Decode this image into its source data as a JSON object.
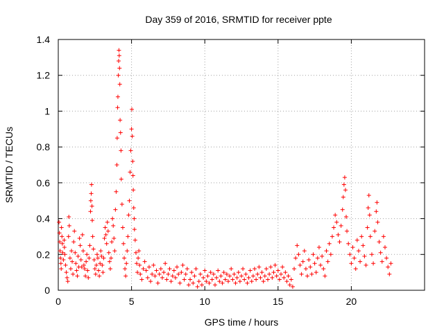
{
  "chart_data": {
    "type": "scatter",
    "title": "Day 359 of 2016, SRMTID for receiver ppte",
    "xlabel": "GPS time / hours",
    "ylabel": "SRMTID / TECUs",
    "xlim": [
      0,
      25
    ],
    "ylim": [
      0,
      1.4
    ],
    "xticks": [
      0,
      5,
      10,
      15,
      20
    ],
    "xtick_labels": [
      "0",
      "5",
      "10",
      "15",
      "20"
    ],
    "yticks": [
      0,
      0.2,
      0.4,
      0.6,
      0.8,
      1.0,
      1.2,
      1.4
    ],
    "ytick_labels": [
      "0",
      "0.2",
      "0.4",
      "0.6",
      "0.8",
      "1",
      "1.2",
      "1.4"
    ],
    "grid": true,
    "marker": "+",
    "marker_color": "#ff0000",
    "series": [
      {
        "name": "SRMTID",
        "points": [
          [
            0.05,
            0.38
          ],
          [
            0.08,
            0.32
          ],
          [
            0.1,
            0.27
          ],
          [
            0.12,
            0.22
          ],
          [
            0.15,
            0.18
          ],
          [
            0.18,
            0.15
          ],
          [
            0.2,
            0.12
          ],
          [
            0.22,
            0.35
          ],
          [
            0.25,
            0.3
          ],
          [
            0.28,
            0.26
          ],
          [
            0.3,
            0.21
          ],
          [
            0.35,
            0.17
          ],
          [
            0.4,
            0.28
          ],
          [
            0.42,
            0.24
          ],
          [
            0.45,
            0.2
          ],
          [
            0.5,
            0.14
          ],
          [
            0.55,
            0.1
          ],
          [
            0.6,
            0.07
          ],
          [
            0.65,
            0.05
          ],
          [
            0.7,
            0.3
          ],
          [
            0.72,
            0.41
          ],
          [
            0.75,
            0.36
          ],
          [
            0.8,
            0.18
          ],
          [
            0.85,
            0.12
          ],
          [
            0.9,
            0.22
          ],
          [
            0.95,
            0.16
          ],
          [
            1.0,
            0.09
          ],
          [
            1.05,
            0.27
          ],
          [
            1.1,
            0.33
          ],
          [
            1.15,
            0.21
          ],
          [
            1.2,
            0.15
          ],
          [
            1.25,
            0.11
          ],
          [
            1.3,
            0.08
          ],
          [
            1.35,
            0.19
          ],
          [
            1.4,
            0.13
          ],
          [
            1.45,
            0.29
          ],
          [
            1.5,
            0.25
          ],
          [
            1.55,
            0.17
          ],
          [
            1.6,
            0.13
          ],
          [
            1.65,
            0.31
          ],
          [
            1.7,
            0.22
          ],
          [
            1.75,
            0.14
          ],
          [
            1.8,
            0.12
          ],
          [
            1.85,
            0.08
          ],
          [
            1.9,
            0.16
          ],
          [
            1.95,
            0.2
          ],
          [
            2.0,
            0.11
          ],
          [
            2.05,
            0.07
          ],
          [
            2.1,
            0.18
          ],
          [
            2.15,
            0.25
          ],
          [
            2.2,
            0.44
          ],
          [
            2.22,
            0.5
          ],
          [
            2.25,
            0.54
          ],
          [
            2.27,
            0.59
          ],
          [
            2.3,
            0.47
          ],
          [
            2.32,
            0.39
          ],
          [
            2.35,
            0.3
          ],
          [
            2.4,
            0.23
          ],
          [
            2.45,
            0.17
          ],
          [
            2.5,
            0.12
          ],
          [
            2.55,
            0.09
          ],
          [
            2.6,
            0.14
          ],
          [
            2.65,
            0.2
          ],
          [
            2.7,
            0.18
          ],
          [
            2.75,
            0.11
          ],
          [
            2.8,
            0.08
          ],
          [
            2.85,
            0.15
          ],
          [
            2.9,
            0.22
          ],
          [
            2.95,
            0.19
          ],
          [
            3.0,
            0.14
          ],
          [
            3.05,
            0.1
          ],
          [
            3.1,
            0.18
          ],
          [
            3.15,
            0.29
          ],
          [
            3.2,
            0.35
          ],
          [
            3.25,
            0.31
          ],
          [
            3.3,
            0.26
          ],
          [
            3.35,
            0.38
          ],
          [
            3.4,
            0.33
          ],
          [
            3.45,
            0.21
          ],
          [
            3.5,
            0.16
          ],
          [
            3.55,
            0.12
          ],
          [
            3.6,
            0.18
          ],
          [
            3.65,
            0.27
          ],
          [
            3.7,
            0.4
          ],
          [
            3.75,
            0.36
          ],
          [
            3.8,
            0.29
          ],
          [
            3.85,
            0.22
          ],
          [
            3.9,
            0.45
          ],
          [
            3.95,
            0.55
          ],
          [
            4.0,
            0.7
          ],
          [
            4.02,
            0.85
          ],
          [
            4.05,
            1.02
          ],
          [
            4.07,
            1.08
          ],
          [
            4.1,
            1.2
          ],
          [
            4.12,
            1.28
          ],
          [
            4.14,
            1.34
          ],
          [
            4.16,
            1.31
          ],
          [
            4.18,
            1.24
          ],
          [
            4.2,
            1.15
          ],
          [
            4.22,
            0.95
          ],
          [
            4.25,
            0.88
          ],
          [
            4.28,
            0.78
          ],
          [
            4.3,
            0.62
          ],
          [
            4.35,
            0.48
          ],
          [
            4.4,
            0.35
          ],
          [
            4.45,
            0.26
          ],
          [
            4.5,
            0.18
          ],
          [
            4.55,
            0.12
          ],
          [
            4.6,
            0.08
          ],
          [
            4.65,
            0.15
          ],
          [
            4.7,
            0.22
          ],
          [
            4.75,
            0.3
          ],
          [
            4.8,
            0.42
          ],
          [
            4.85,
            0.5
          ],
          [
            4.9,
            0.66
          ],
          [
            4.95,
            0.78
          ],
          [
            5.0,
            0.9
          ],
          [
            5.02,
            1.01
          ],
          [
            5.05,
            0.86
          ],
          [
            5.08,
            0.72
          ],
          [
            5.1,
            0.64
          ],
          [
            5.12,
            0.56
          ],
          [
            5.15,
            0.46
          ],
          [
            5.18,
            0.4
          ],
          [
            5.2,
            0.34
          ],
          [
            5.25,
            0.28
          ],
          [
            5.3,
            0.21
          ],
          [
            5.35,
            0.15
          ],
          [
            5.4,
            0.1
          ],
          [
            5.45,
            0.18
          ],
          [
            5.5,
            0.22
          ],
          [
            5.55,
            0.14
          ],
          [
            5.6,
            0.09
          ],
          [
            5.7,
            0.06
          ],
          [
            5.8,
            0.12
          ],
          [
            5.9,
            0.16
          ],
          [
            6.0,
            0.11
          ],
          [
            6.1,
            0.07
          ],
          [
            6.2,
            0.13
          ],
          [
            6.3,
            0.05
          ],
          [
            6.4,
            0.09
          ],
          [
            6.5,
            0.14
          ],
          [
            6.6,
            0.08
          ],
          [
            6.7,
            0.11
          ],
          [
            6.8,
            0.04
          ],
          [
            6.9,
            0.09
          ],
          [
            7.0,
            0.12
          ],
          [
            7.1,
            0.07
          ],
          [
            7.2,
            0.1
          ],
          [
            7.3,
            0.15
          ],
          [
            7.4,
            0.06
          ],
          [
            7.5,
            0.09
          ],
          [
            7.6,
            0.12
          ],
          [
            7.7,
            0.05
          ],
          [
            7.8,
            0.08
          ],
          [
            7.9,
            0.11
          ],
          [
            8.0,
            0.07
          ],
          [
            8.1,
            0.13
          ],
          [
            8.2,
            0.09
          ],
          [
            8.3,
            0.04
          ],
          [
            8.4,
            0.1
          ],
          [
            8.5,
            0.14
          ],
          [
            8.6,
            0.06
          ],
          [
            8.7,
            0.09
          ],
          [
            8.8,
            0.12
          ],
          [
            8.9,
            0.03
          ],
          [
            9.0,
            0.06
          ],
          [
            9.1,
            0.1
          ],
          [
            9.2,
            0.04
          ],
          [
            9.3,
            0.08
          ],
          [
            9.4,
            0.12
          ],
          [
            9.5,
            0.02
          ],
          [
            9.6,
            0.05
          ],
          [
            9.7,
            0.09
          ],
          [
            9.8,
            0.03
          ],
          [
            9.9,
            0.07
          ],
          [
            10.0,
            0.11
          ],
          [
            10.1,
            0.05
          ],
          [
            10.2,
            0.08
          ],
          [
            10.3,
            0.04
          ],
          [
            10.4,
            0.1
          ],
          [
            10.5,
            0.06
          ],
          [
            10.6,
            0.09
          ],
          [
            10.7,
            0.03
          ],
          [
            10.8,
            0.07
          ],
          [
            10.9,
            0.11
          ],
          [
            11.0,
            0.05
          ],
          [
            11.1,
            0.08
          ],
          [
            11.2,
            0.04
          ],
          [
            11.3,
            0.1
          ],
          [
            11.4,
            0.06
          ],
          [
            11.5,
            0.09
          ],
          [
            11.6,
            0.05
          ],
          [
            11.7,
            0.08
          ],
          [
            11.8,
            0.12
          ],
          [
            11.9,
            0.06
          ],
          [
            12.0,
            0.09
          ],
          [
            12.1,
            0.04
          ],
          [
            12.2,
            0.07
          ],
          [
            12.3,
            0.1
          ],
          [
            12.4,
            0.05
          ],
          [
            12.5,
            0.08
          ],
          [
            12.6,
            0.12
          ],
          [
            12.7,
            0.06
          ],
          [
            12.8,
            0.09
          ],
          [
            12.9,
            0.04
          ],
          [
            13.0,
            0.07
          ],
          [
            13.1,
            0.11
          ],
          [
            13.2,
            0.05
          ],
          [
            13.3,
            0.08
          ],
          [
            13.4,
            0.12
          ],
          [
            13.5,
            0.06
          ],
          [
            13.6,
            0.09
          ],
          [
            13.7,
            0.13
          ],
          [
            13.8,
            0.07
          ],
          [
            13.9,
            0.1
          ],
          [
            14.0,
            0.05
          ],
          [
            14.1,
            0.08
          ],
          [
            14.2,
            0.12
          ],
          [
            14.3,
            0.06
          ],
          [
            14.4,
            0.09
          ],
          [
            14.5,
            0.13
          ],
          [
            14.6,
            0.07
          ],
          [
            14.7,
            0.1
          ],
          [
            14.8,
            0.14
          ],
          [
            14.9,
            0.08
          ],
          [
            15.0,
            0.11
          ],
          [
            15.1,
            0.06
          ],
          [
            15.2,
            0.09
          ],
          [
            15.3,
            0.13
          ],
          [
            15.4,
            0.07
          ],
          [
            15.5,
            0.1
          ],
          [
            15.6,
            0.05
          ],
          [
            15.7,
            0.08
          ],
          [
            15.8,
            0.03
          ],
          [
            15.9,
            0.06
          ],
          [
            16.0,
            0.02
          ],
          [
            16.1,
            0.12
          ],
          [
            16.2,
            0.18
          ],
          [
            16.3,
            0.25
          ],
          [
            16.4,
            0.2
          ],
          [
            16.5,
            0.14
          ],
          [
            16.6,
            0.09
          ],
          [
            16.7,
            0.16
          ],
          [
            16.8,
            0.22
          ],
          [
            16.9,
            0.12
          ],
          [
            17.0,
            0.08
          ],
          [
            17.1,
            0.17
          ],
          [
            17.2,
            0.13
          ],
          [
            17.3,
            0.09
          ],
          [
            17.4,
            0.2
          ],
          [
            17.5,
            0.15
          ],
          [
            17.6,
            0.1
          ],
          [
            17.7,
            0.18
          ],
          [
            17.8,
            0.24
          ],
          [
            17.9,
            0.14
          ],
          [
            18.0,
            0.19
          ],
          [
            18.1,
            0.12
          ],
          [
            18.2,
            0.08
          ],
          [
            18.3,
            0.22
          ],
          [
            18.4,
            0.16
          ],
          [
            18.5,
            0.26
          ],
          [
            18.6,
            0.2
          ],
          [
            18.7,
            0.3
          ],
          [
            18.8,
            0.35
          ],
          [
            18.9,
            0.42
          ],
          [
            19.0,
            0.38
          ],
          [
            19.1,
            0.31
          ],
          [
            19.2,
            0.27
          ],
          [
            19.3,
            0.36
          ],
          [
            19.4,
            0.45
          ],
          [
            19.45,
            0.52
          ],
          [
            19.5,
            0.59
          ],
          [
            19.55,
            0.63
          ],
          [
            19.6,
            0.56
          ],
          [
            19.65,
            0.41
          ],
          [
            19.7,
            0.33
          ],
          [
            19.8,
            0.26
          ],
          [
            19.9,
            0.2
          ],
          [
            20.0,
            0.15
          ],
          [
            20.1,
            0.24
          ],
          [
            20.2,
            0.18
          ],
          [
            20.3,
            0.12
          ],
          [
            20.4,
            0.28
          ],
          [
            20.5,
            0.22
          ],
          [
            20.6,
            0.16
          ],
          [
            20.7,
            0.3
          ],
          [
            20.8,
            0.25
          ],
          [
            20.9,
            0.19
          ],
          [
            21.0,
            0.14
          ],
          [
            21.1,
            0.35
          ],
          [
            21.15,
            0.46
          ],
          [
            21.2,
            0.53
          ],
          [
            21.25,
            0.42
          ],
          [
            21.3,
            0.3
          ],
          [
            21.4,
            0.2
          ],
          [
            21.5,
            0.15
          ],
          [
            21.6,
            0.33
          ],
          [
            21.7,
            0.44
          ],
          [
            21.75,
            0.49
          ],
          [
            21.8,
            0.38
          ],
          [
            21.9,
            0.27
          ],
          [
            22.0,
            0.21
          ],
          [
            22.1,
            0.16
          ],
          [
            22.2,
            0.3
          ],
          [
            22.3,
            0.24
          ],
          [
            22.4,
            0.18
          ],
          [
            22.5,
            0.13
          ],
          [
            22.6,
            0.09
          ],
          [
            22.7,
            0.15
          ]
        ]
      }
    ]
  }
}
